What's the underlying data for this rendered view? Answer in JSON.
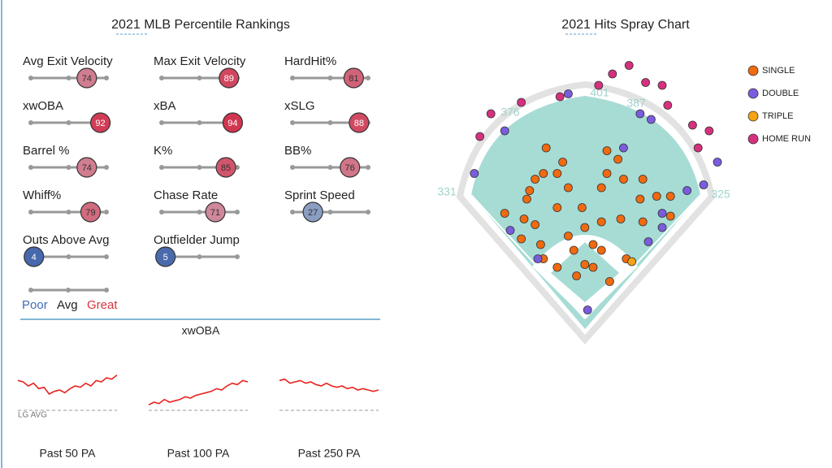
{
  "left": {
    "title": "2021 MLB Percentile Rankings",
    "metrics": [
      {
        "name": "Avg Exit Velocity",
        "value": 74
      },
      {
        "name": "Max Exit Velocity",
        "value": 89
      },
      {
        "name": "HardHit%",
        "value": 81
      },
      {
        "name": "xwOBA",
        "value": 92
      },
      {
        "name": "xBA",
        "value": 94
      },
      {
        "name": "xSLG",
        "value": 88
      },
      {
        "name": "Barrel %",
        "value": 74
      },
      {
        "name": "K%",
        "value": 85
      },
      {
        "name": "BB%",
        "value": 76
      },
      {
        "name": "Whiff%",
        "value": 79
      },
      {
        "name": "Chase Rate",
        "value": 71
      },
      {
        "name": "Sprint Speed",
        "value": 27
      },
      {
        "name": "Outs Above Avg",
        "value": 4
      },
      {
        "name": "Outfielder Jump",
        "value": 5
      }
    ],
    "scale_labels": [
      "Poor",
      "Avg",
      "Great"
    ],
    "trend": {
      "title": "xwOBA",
      "baseline_label": "LG AVG",
      "lg_avg": 0.31,
      "ylim": [
        0.28,
        0.46
      ],
      "panels": [
        {
          "label": "Past 50 PA",
          "values": [
            0.42,
            0.415,
            0.4,
            0.41,
            0.39,
            0.395,
            0.37,
            0.38,
            0.385,
            0.375,
            0.39,
            0.4,
            0.395,
            0.41,
            0.4,
            0.42,
            0.415,
            0.43,
            0.425,
            0.44
          ]
        },
        {
          "label": "Past 100 PA",
          "values": [
            0.33,
            0.34,
            0.335,
            0.35,
            0.34,
            0.345,
            0.35,
            0.36,
            0.355,
            0.365,
            0.37,
            0.375,
            0.38,
            0.39,
            0.385,
            0.4,
            0.41,
            0.405,
            0.42,
            0.415
          ]
        },
        {
          "label": "Past 250 PA",
          "values": [
            0.42,
            0.425,
            0.41,
            0.415,
            0.42,
            0.41,
            0.415,
            0.405,
            0.4,
            0.41,
            0.4,
            0.395,
            0.4,
            0.39,
            0.395,
            0.385,
            0.39,
            0.385,
            0.38,
            0.385
          ]
        }
      ]
    }
  },
  "spray": {
    "title": "2021 Hits Spray Chart",
    "type": "scatter",
    "xlim": [
      0,
      100
    ],
    "ylim": [
      0,
      100
    ],
    "distances": [
      376,
      401,
      387,
      331,
      325
    ],
    "series": [
      {
        "name": "SINGLE",
        "color": "#f06a0f",
        "x": [
          33,
          39,
          32,
          29,
          27,
          26,
          18,
          25,
          29,
          31,
          32,
          37,
          41,
          43,
          47,
          50,
          53,
          47,
          44,
          56,
          55,
          59,
          55,
          53,
          61,
          68,
          73,
          78,
          67,
          60,
          53,
          68,
          78,
          41,
          46,
          37,
          62,
          50,
          24,
          37
        ],
        "y": [
          68,
          63,
          59,
          57,
          53,
          50,
          45,
          43,
          41,
          34,
          29,
          26,
          37,
          32,
          40,
          34,
          32,
          27,
          23,
          21,
          67,
          64,
          59,
          54,
          57,
          57,
          51,
          51,
          50,
          43,
          42,
          42,
          44,
          54,
          47,
          47,
          29,
          26,
          36,
          59
        ]
      },
      {
        "name": "DOUBLE",
        "color": "#7b5cde",
        "x": [
          18,
          7,
          20,
          30,
          41,
          67,
          71,
          61,
          84,
          95,
          90,
          75,
          75,
          70,
          48
        ],
        "y": [
          74,
          59,
          39,
          29,
          87,
          80,
          78,
          68,
          53,
          63,
          55,
          45,
          40,
          35,
          11
        ]
      },
      {
        "name": "TRIPLE",
        "color": "#f5a312",
        "x": [
          64
        ],
        "y": [
          28
        ]
      },
      {
        "name": "HOME RUN",
        "color": "#d6307e",
        "x": [
          13,
          9,
          24,
          38,
          52,
          57,
          63,
          69,
          75,
          77,
          86,
          92,
          88
        ],
        "y": [
          80,
          72,
          84,
          86,
          90,
          94,
          97,
          91,
          90,
          83,
          76,
          74,
          68
        ]
      }
    ]
  }
}
